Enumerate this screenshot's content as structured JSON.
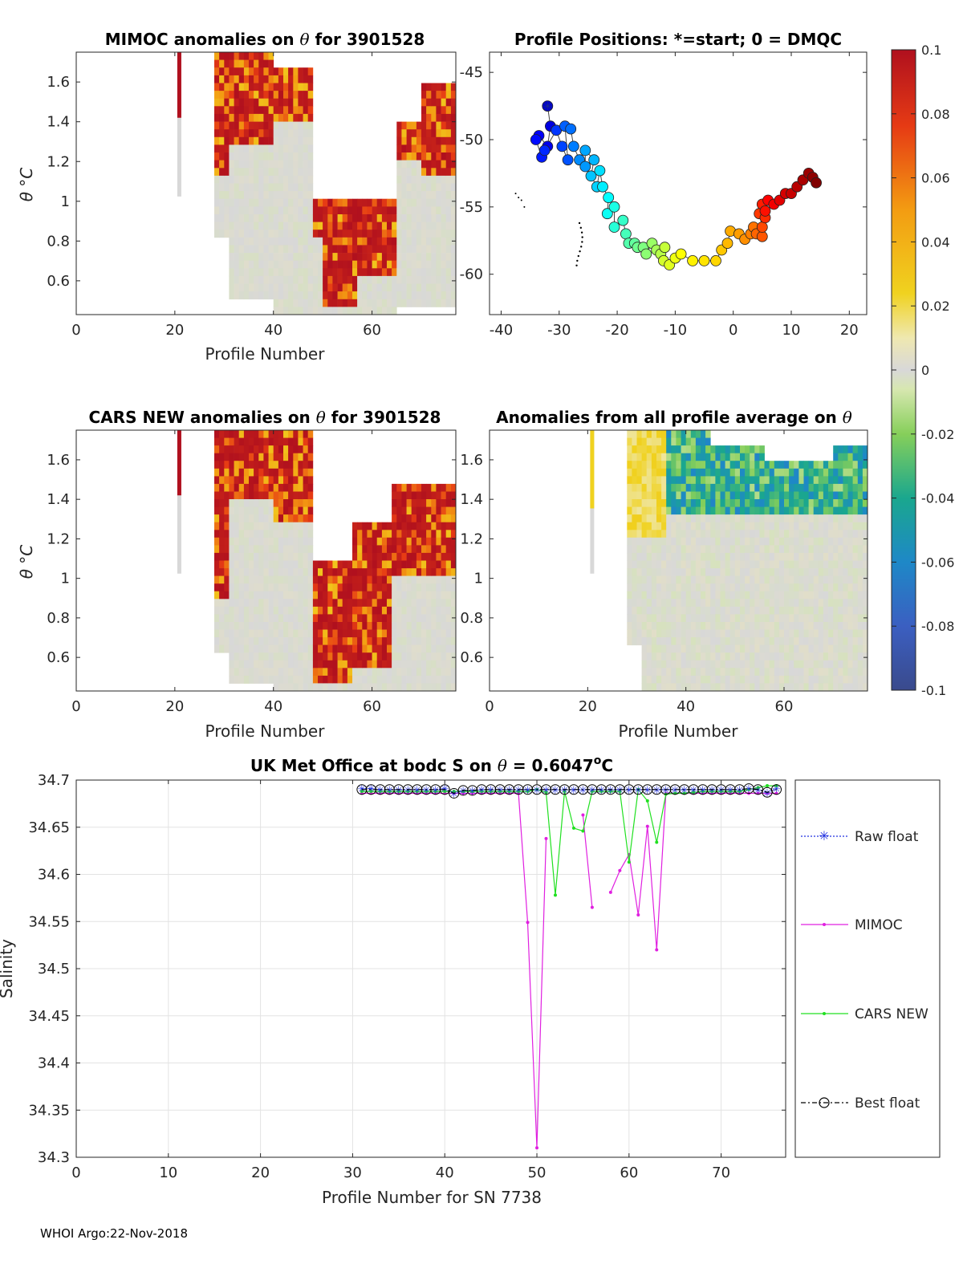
{
  "footer": "WHOI Argo:22-Nov-2018",
  "colorbar": {
    "ticks": [
      "0.1",
      "0.08",
      "0.06",
      "0.04",
      "0.02",
      "0",
      "-0.02",
      "-0.04",
      "-0.06",
      "-0.08",
      "-0.1"
    ],
    "range": [
      -0.1,
      0.1
    ]
  },
  "chart_data": [
    {
      "id": "mimoc",
      "type": "heatmap",
      "title_pre": "MIMOC anomalies on",
      "title_sym": "θ",
      "title_post": " for 3901528",
      "xlabel": "Profile Number",
      "ylabel": "θ °C",
      "xticks": [
        "0",
        "20",
        "40",
        "60"
      ],
      "yticks": [
        "1.6",
        "1.4",
        "1.2",
        "1",
        "0.8",
        "0.6"
      ],
      "xlim": [
        0,
        77
      ],
      "ylim": [
        0.43,
        1.75
      ]
    },
    {
      "id": "positions",
      "type": "scatter",
      "title": "Profile Positions: *=start; 0 = DMQC",
      "xticks": [
        "-40",
        "-30",
        "-20",
        "-10",
        "0",
        "10",
        "20"
      ],
      "yticks": [
        "-45",
        "-50",
        "-55",
        "-60"
      ],
      "xlim": [
        -42,
        23
      ],
      "ylim": [
        -63,
        -43.5
      ],
      "track": [
        [
          -32,
          -47.5
        ],
        [
          -31.5,
          -49
        ],
        [
          -32,
          -50.5
        ],
        [
          -33.5,
          -49.7
        ],
        [
          -34,
          -50
        ],
        [
          -33,
          -51.3
        ],
        [
          -32.5,
          -50.8
        ],
        [
          -30.5,
          -49.3
        ],
        [
          -29.5,
          -50.5
        ],
        [
          -28.5,
          -51.5
        ],
        [
          -29,
          -49
        ],
        [
          -28,
          -49.2
        ],
        [
          -27.5,
          -50.5
        ],
        [
          -26.5,
          -51.5
        ],
        [
          -25.5,
          -52
        ],
        [
          -25.5,
          -50.8
        ],
        [
          -24,
          -51.5
        ],
        [
          -24.5,
          -52.7
        ],
        [
          -23.5,
          -53.5
        ],
        [
          -23,
          -52.3
        ],
        [
          -22.5,
          -53.5
        ],
        [
          -21.5,
          -54.3
        ],
        [
          -21.7,
          -55.5
        ],
        [
          -20.5,
          -55
        ],
        [
          -20.5,
          -56.5
        ],
        [
          -19,
          -56
        ],
        [
          -18.5,
          -57
        ],
        [
          -18,
          -57.7
        ],
        [
          -17,
          -57.7
        ],
        [
          -16.5,
          -58
        ],
        [
          -15.5,
          -58
        ],
        [
          -15,
          -58.5
        ],
        [
          -14,
          -57.7
        ],
        [
          -13.2,
          -58.2
        ],
        [
          -12.5,
          -58.5
        ],
        [
          -11.8,
          -58
        ],
        [
          -12,
          -59
        ],
        [
          -11,
          -59.3
        ],
        [
          -10,
          -58.8
        ],
        [
          -9,
          -58.5
        ],
        [
          -7,
          -59
        ],
        [
          -5,
          -59
        ],
        [
          -3,
          -59
        ],
        [
          -2,
          -58.2
        ],
        [
          -1,
          -57.7
        ],
        [
          -0.5,
          -56.8
        ],
        [
          1,
          -57
        ],
        [
          2,
          -57.4
        ],
        [
          3,
          -57
        ],
        [
          3.5,
          -56.5
        ],
        [
          4,
          -57
        ],
        [
          5,
          -57.2
        ],
        [
          5,
          -56.5
        ],
        [
          4.5,
          -55.5
        ],
        [
          5.5,
          -55.8
        ],
        [
          5,
          -54.8
        ],
        [
          5.5,
          -55.3
        ],
        [
          6,
          -54.5
        ],
        [
          7,
          -54.8
        ],
        [
          8,
          -54.5
        ],
        [
          9,
          -54
        ],
        [
          10,
          -54
        ],
        [
          11,
          -53.5
        ],
        [
          12,
          -53
        ],
        [
          13,
          -52.5
        ],
        [
          13.7,
          -52.8
        ],
        [
          14.3,
          -53.2
        ]
      ],
      "start": [
        -32,
        -47.5
      ]
    },
    {
      "id": "cars",
      "type": "heatmap",
      "title_pre": "CARS NEW anomalies on",
      "title_sym": "θ",
      "title_post": " for 3901528",
      "xlabel": "Profile Number",
      "ylabel": "θ °C",
      "xticks": [
        "0",
        "20",
        "40",
        "60"
      ],
      "yticks": [
        "1.6",
        "1.4",
        "1.2",
        "1",
        "0.8",
        "0.6"
      ],
      "xlim": [
        0,
        77
      ],
      "ylim": [
        0.43,
        1.75
      ]
    },
    {
      "id": "allavg",
      "type": "heatmap",
      "title_pre": "Anomalies from all profile average on",
      "title_sym": "θ",
      "title_post": "",
      "xlabel": "Profile Number",
      "xticks": [
        "0",
        "20",
        "40",
        "60"
      ],
      "yticks": [
        "1.6",
        "1.4",
        "1.2",
        "1",
        "0.8",
        "0.6"
      ],
      "xlim": [
        0,
        77
      ],
      "ylim": [
        0.43,
        1.75
      ]
    },
    {
      "id": "salinity",
      "type": "line",
      "title_pre": "UK Met Office at bodc S on",
      "title_sym": "θ",
      "title_post": " = 0.6047",
      "title_sup": "o",
      "title_unit": "C",
      "xlabel": "Profile Number for SN 7738",
      "ylabel": "Salinity",
      "xticks": [
        "0",
        "10",
        "20",
        "30",
        "40",
        "50",
        "60",
        "70"
      ],
      "yticks": [
        "34.7",
        "34.65",
        "34.6",
        "34.55",
        "34.5",
        "34.45",
        "34.4",
        "34.35",
        "34.3"
      ],
      "xlim": [
        0,
        77
      ],
      "ylim": [
        34.3,
        34.7
      ],
      "grid": true,
      "legend": [
        "Raw float",
        "MIMOC",
        "CARS NEW",
        "Best float"
      ],
      "x": [
        31,
        32,
        33,
        34,
        35,
        36,
        37,
        38,
        39,
        40,
        41,
        42,
        43,
        44,
        45,
        46,
        47,
        48,
        49,
        50,
        51,
        52,
        53,
        54,
        55,
        56,
        57,
        58,
        59,
        60,
        61,
        62,
        63,
        64,
        65,
        66,
        67,
        68,
        69,
        70,
        71,
        72,
        73,
        74,
        75,
        76
      ],
      "series": [
        {
          "name": "Raw float",
          "values": [
            34.691,
            34.691,
            34.69,
            34.69,
            34.69,
            34.69,
            34.69,
            34.69,
            34.69,
            34.691,
            34.686,
            34.689,
            34.689,
            34.69,
            34.69,
            34.69,
            34.69,
            34.69,
            34.69,
            34.69,
            34.69,
            34.69,
            34.69,
            34.69,
            34.69,
            34.69,
            34.69,
            34.69,
            34.69,
            34.69,
            34.69,
            34.69,
            34.69,
            34.69,
            34.69,
            34.69,
            34.69,
            34.69,
            34.69,
            34.69,
            34.69,
            34.69,
            34.691,
            34.69,
            34.687,
            34.691
          ]
        },
        {
          "name": "MIMOC",
          "values": [
            34.686,
            34.686,
            34.686,
            34.686,
            34.686,
            34.686,
            34.686,
            34.686,
            34.686,
            34.686,
            34.686,
            34.686,
            34.686,
            34.686,
            34.686,
            34.686,
            34.686,
            34.686,
            34.549,
            34.31,
            34.638,
            null,
            null,
            null,
            34.663,
            34.565,
            null,
            34.581,
            34.604,
            34.621,
            34.557,
            34.651,
            34.52,
            34.686,
            34.686,
            34.686,
            34.686,
            34.686,
            34.686,
            34.686,
            34.686,
            34.686,
            34.686,
            34.686,
            34.686,
            34.686
          ]
        },
        {
          "name": "CARS NEW",
          "values": [
            34.688,
            34.688,
            34.688,
            34.688,
            34.688,
            34.688,
            34.688,
            34.688,
            34.688,
            34.688,
            34.688,
            34.688,
            34.688,
            34.688,
            34.688,
            34.688,
            34.688,
            34.688,
            34.688,
            34.69,
            34.687,
            34.578,
            34.688,
            34.649,
            34.646,
            34.688,
            34.688,
            34.688,
            34.688,
            34.613,
            34.69,
            34.678,
            34.634,
            34.685,
            34.686,
            34.686,
            34.687,
            34.688,
            34.688,
            34.688,
            34.688,
            34.688,
            34.69,
            34.692,
            34.694,
            34.694
          ]
        },
        {
          "name": "Best float",
          "values": [
            34.69,
            34.69,
            34.69,
            34.69,
            34.69,
            34.69,
            34.69,
            34.69,
            34.69,
            34.69,
            34.686,
            34.689,
            34.689,
            34.69,
            34.69,
            34.69,
            34.69,
            34.69,
            34.69,
            34.69,
            34.69,
            34.69,
            34.69,
            34.69,
            34.69,
            34.69,
            34.69,
            34.69,
            34.69,
            34.69,
            34.69,
            34.69,
            34.69,
            34.69,
            34.69,
            34.69,
            34.69,
            34.69,
            34.69,
            34.69,
            34.69,
            34.69,
            34.691,
            34.69,
            34.687,
            34.69
          ]
        }
      ]
    }
  ]
}
